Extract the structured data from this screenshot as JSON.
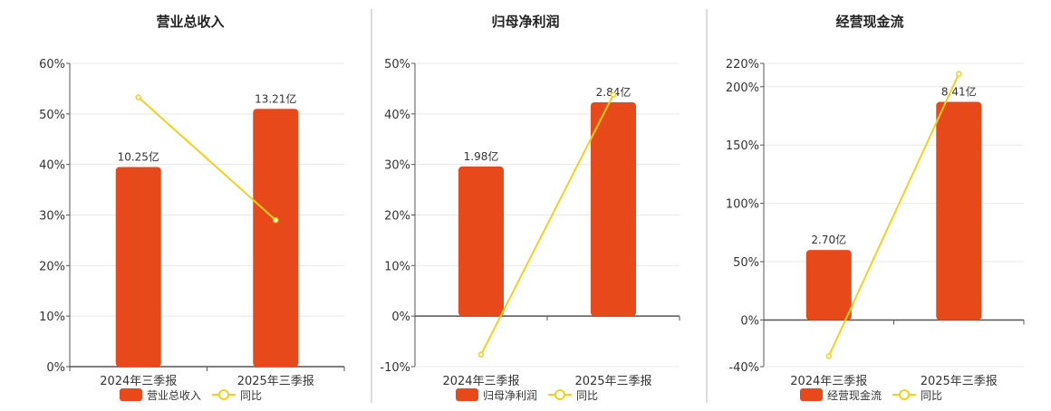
{
  "chart_data": [
    {
      "type": "bar",
      "title": "营业总收入",
      "categories": [
        "2024年三季报",
        "2025年三季报"
      ],
      "series": [
        {
          "name": "营业总收入",
          "kind": "bar",
          "values": [
            39.5,
            51.0
          ],
          "labels": [
            "10.25亿",
            "13.21亿"
          ]
        },
        {
          "name": "同比",
          "kind": "line",
          "values": [
            53.3,
            29.0
          ]
        }
      ],
      "yticks": [
        "0%",
        "10%",
        "20%",
        "30%",
        "40%",
        "50%",
        "60%"
      ],
      "ylim": [
        0,
        60
      ]
    },
    {
      "type": "bar",
      "title": "归母净利润",
      "categories": [
        "2024年三季报",
        "2025年三季报"
      ],
      "series": [
        {
          "name": "归母净利润",
          "kind": "bar",
          "values": [
            29.6,
            42.3
          ],
          "labels": [
            "1.98亿",
            "2.84亿"
          ]
        },
        {
          "name": "同比",
          "kind": "line",
          "values": [
            -7.6,
            43.8
          ]
        }
      ],
      "yticks": [
        "-10%",
        "0%",
        "10%",
        "20%",
        "30%",
        "40%",
        "50%"
      ],
      "ylim": [
        -10,
        50
      ]
    },
    {
      "type": "bar",
      "title": "经营现金流",
      "categories": [
        "2024年三季报",
        "2025年三季报"
      ],
      "series": [
        {
          "name": "经营现金流",
          "kind": "bar",
          "values": [
            60,
            187
          ],
          "labels": [
            "2.70亿",
            "8.41亿"
          ]
        },
        {
          "name": "同比",
          "kind": "line",
          "values": [
            -31,
            211
          ]
        }
      ],
      "yticks": [
        "-40%",
        "0%",
        "50%",
        "100%",
        "150%",
        "200%",
        "220%"
      ],
      "ytick_values": [
        -40,
        0,
        50,
        100,
        150,
        200,
        220
      ],
      "ylim": [
        -40,
        220
      ]
    }
  ],
  "colors": {
    "bar": "#E8491B",
    "line": "#F2D11B",
    "axis": "#555555",
    "grid": "#E8E8E8",
    "divider": "#BBBBBB"
  }
}
